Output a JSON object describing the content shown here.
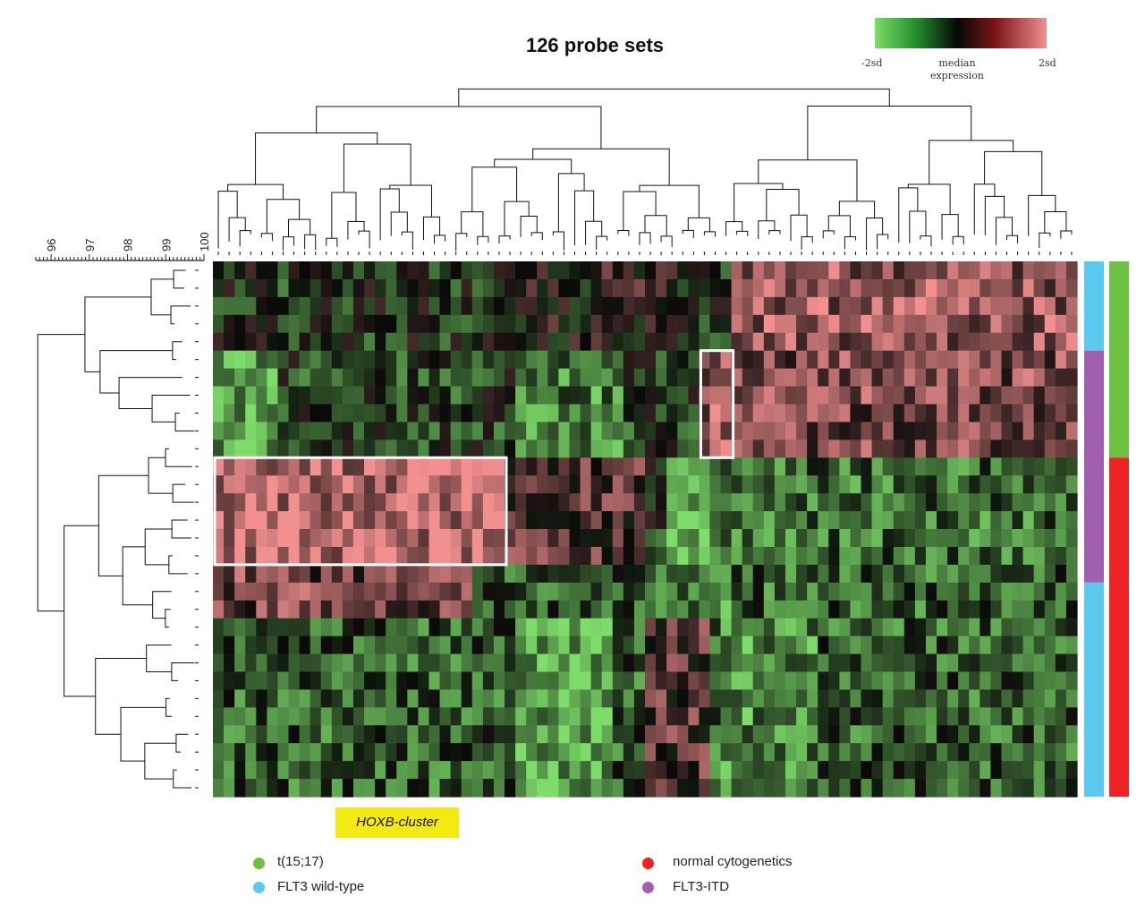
{
  "chart_data": {
    "type": "heatmap",
    "title": "126 probe sets",
    "color_scale": {
      "low_label": "-2sd",
      "mid_label_line1": "median",
      "mid_label_line2": "expression",
      "high_label": "2sd",
      "low_color": "#7ddc6a",
      "mid_color": "#000000",
      "high_color": "#f28f8f"
    },
    "row_dendrogram_axis": {
      "ticks": [
        "96",
        "97",
        "98",
        "99",
        "100"
      ],
      "range": [
        95.6,
        100
      ]
    },
    "n_rows": 30,
    "n_columns": 80,
    "row_groups": [
      {
        "label": "FLT3 wild-type",
        "rows": [
          0,
          4
        ],
        "color": "#5bc8f0"
      },
      {
        "label": "FLT3-ITD",
        "rows": [
          5,
          17
        ],
        "color": "#a15fb0"
      },
      {
        "label": "FLT3 wild-type",
        "rows": [
          18,
          29
        ],
        "color": "#5bc8f0"
      }
    ],
    "cytogenetic_groups": [
      {
        "label": "t(15;17)",
        "rows": [
          0,
          10
        ],
        "color": "#6dc041"
      },
      {
        "label": "normal cytogenetics",
        "rows": [
          11,
          29
        ],
        "color": "#ee2424"
      }
    ],
    "highlighted_clusters": [
      {
        "label": "HOXB-cluster",
        "rows": [
          11,
          16
        ],
        "columns": [
          0,
          26
        ]
      },
      {
        "label": "",
        "rows": [
          5,
          10
        ],
        "columns": [
          45,
          47
        ]
      }
    ],
    "legend": [
      {
        "label": "t(15;17)",
        "color": "#6dc041"
      },
      {
        "label": "FLT3 wild-type",
        "color": "#5bc8f0"
      },
      {
        "label": "normal cytogenetics",
        "color": "#ee2424"
      },
      {
        "label": "FLT3-ITD",
        "color": "#a15fb0"
      }
    ],
    "cluster_label": "HOXB-cluster"
  }
}
